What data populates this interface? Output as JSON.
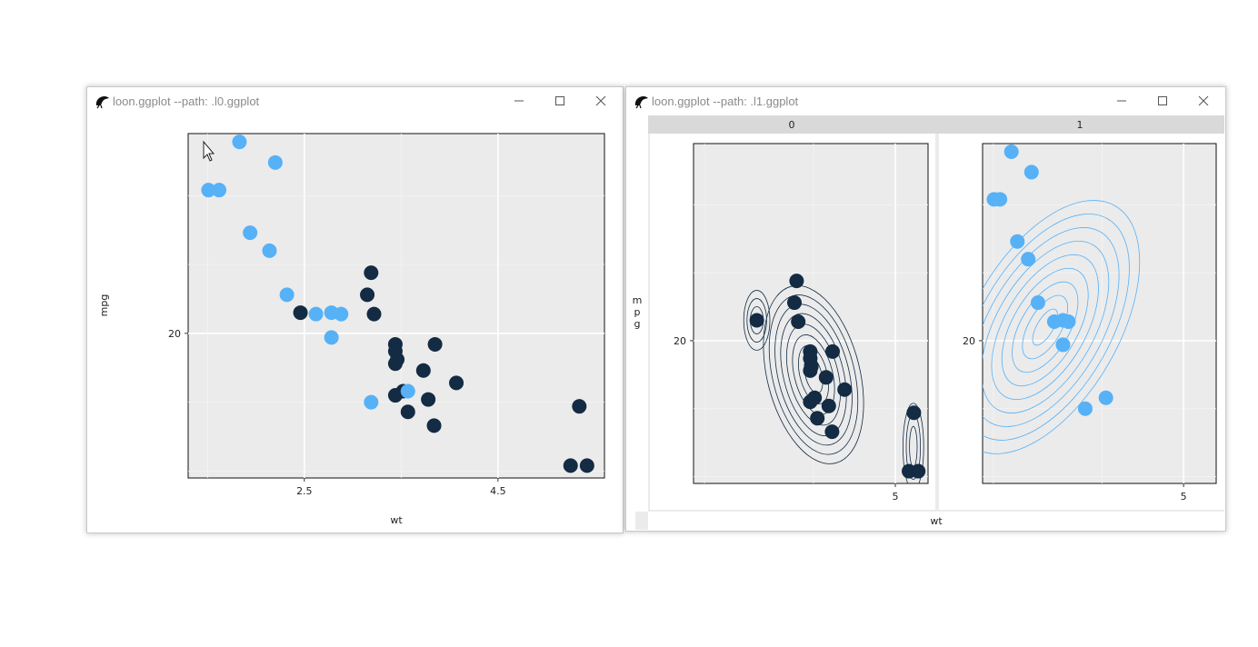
{
  "windows": [
    {
      "title": "loon.ggplot --path: .l0.ggplot",
      "icon": "loon-bird-icon",
      "controls": [
        "minimize-icon",
        "maximize-icon",
        "close-icon"
      ]
    },
    {
      "title": "loon.ggplot --path: .l1.ggplot",
      "icon": "loon-bird-icon",
      "controls": [
        "minimize-icon",
        "maximize-icon",
        "close-icon"
      ]
    }
  ],
  "colors": {
    "selected": "#56B1F7",
    "unselected": "#132B43",
    "panel_bg": "#EBEBEB",
    "grid": "#FFFFFF",
    "strip_bg": "#D9D9D9",
    "contour_unselected": "#132B43",
    "contour_selected": "#56B1F7"
  },
  "chart_data": [
    {
      "type": "scatter",
      "title": "",
      "xlabel": "wt",
      "ylabel": "mpg",
      "xlim": [
        1.3,
        5.6
      ],
      "ylim": [
        9.5,
        34.5
      ],
      "x_ticks": [
        2.5,
        4.5
      ],
      "x_tick_labels": [
        "2.5",
        "4.5"
      ],
      "y_ticks": [
        20
      ],
      "y_tick_labels": [
        "20"
      ],
      "grid": true,
      "series": [
        {
          "points": [
            [
              1.51,
              30.4
            ],
            [
              1.62,
              30.4
            ],
            [
              1.83,
              33.9
            ],
            [
              1.94,
              27.3
            ],
            [
              2.14,
              26.0
            ],
            [
              2.2,
              32.4
            ],
            [
              2.32,
              22.8
            ],
            [
              2.62,
              21.4
            ],
            [
              2.78,
              21.5
            ],
            [
              2.78,
              19.7
            ],
            [
              2.88,
              21.4
            ],
            [
              3.19,
              15.0
            ],
            [
              3.57,
              15.8
            ]
          ]
        },
        {
          "points": [
            [
              2.46,
              21.5
            ],
            [
              3.15,
              22.8
            ],
            [
              3.19,
              24.4
            ],
            [
              3.22,
              21.4
            ],
            [
              3.44,
              19.2
            ],
            [
              3.44,
              18.7
            ],
            [
              3.44,
              17.8
            ],
            [
              3.46,
              18.1
            ],
            [
              3.44,
              15.5
            ],
            [
              3.52,
              15.8
            ],
            [
              3.57,
              14.3
            ],
            [
              3.73,
              17.3
            ],
            [
              3.78,
              15.2
            ],
            [
              3.84,
              13.3
            ],
            [
              3.85,
              19.2
            ],
            [
              4.07,
              16.4
            ],
            [
              5.25,
              10.4
            ],
            [
              5.34,
              14.7
            ],
            [
              5.42,
              10.4
            ]
          ]
        }
      ]
    },
    {
      "type": "scatter",
      "title": "",
      "xlabel": "wt",
      "ylabel": "mpg",
      "xlim": [
        1.3,
        5.6
      ],
      "ylim": [
        9.5,
        34.5
      ],
      "x_ticks": [
        5
      ],
      "x_tick_labels": [
        "5"
      ],
      "y_ticks": [
        20
      ],
      "y_tick_labels": [
        "20"
      ],
      "grid": true,
      "facets": [
        {
          "strip_label": "0",
          "points": [
            [
              2.46,
              21.5
            ],
            [
              3.15,
              22.8
            ],
            [
              3.19,
              24.4
            ],
            [
              3.22,
              21.4
            ],
            [
              3.44,
              19.2
            ],
            [
              3.44,
              18.7
            ],
            [
              3.44,
              17.8
            ],
            [
              3.46,
              18.1
            ],
            [
              3.44,
              15.5
            ],
            [
              3.52,
              15.8
            ],
            [
              3.57,
              14.3
            ],
            [
              3.73,
              17.3
            ],
            [
              3.78,
              15.2
            ],
            [
              3.84,
              13.3
            ],
            [
              3.85,
              19.2
            ],
            [
              4.07,
              16.4
            ],
            [
              5.25,
              10.4
            ],
            [
              5.34,
              14.7
            ],
            [
              5.42,
              10.4
            ]
          ],
          "contours": [
            {
              "cx": 2.46,
              "cy": 21.5,
              "rx": [
                0.12,
                0.18,
                0.24
              ],
              "ry": [
                1.0,
                1.6,
                2.2
              ],
              "rot": 0
            },
            {
              "cx": 3.5,
              "cy": 17.5,
              "rx": [
                0.15,
                0.25,
                0.35,
                0.45,
                0.55,
                0.65,
                0.75,
                0.85
              ],
              "ry": [
                1.4,
                2.2,
                3.0,
                3.8,
                4.6,
                5.3,
                6.0,
                6.7
              ],
              "rot": -14
            },
            {
              "cx": 5.33,
              "cy": 12.2,
              "rx": [
                0.07,
                0.13,
                0.19
              ],
              "ry": [
                1.5,
                2.4,
                3.2
              ],
              "rot": 0
            }
          ]
        },
        {
          "strip_label": "1",
          "points": [
            [
              1.51,
              30.4
            ],
            [
              1.62,
              30.4
            ],
            [
              1.83,
              33.9
            ],
            [
              1.94,
              27.3
            ],
            [
              2.14,
              26.0
            ],
            [
              2.2,
              32.4
            ],
            [
              2.32,
              22.8
            ],
            [
              2.62,
              21.4
            ],
            [
              2.78,
              21.5
            ],
            [
              2.78,
              19.7
            ],
            [
              2.88,
              21.4
            ],
            [
              3.19,
              15.0
            ],
            [
              3.57,
              15.8
            ]
          ],
          "contours": [
            {
              "cx": 2.45,
              "cy": 21.0,
              "rx": [
                0.15,
                0.3,
                0.45,
                0.6,
                0.75,
                0.9,
                1.05,
                1.2,
                1.35
              ],
              "ry": [
                1.5,
                2.6,
                3.7,
                4.8,
                5.9,
                7.0,
                8.1,
                9.2,
                10.3
              ],
              "rot": 30
            }
          ]
        }
      ]
    }
  ]
}
